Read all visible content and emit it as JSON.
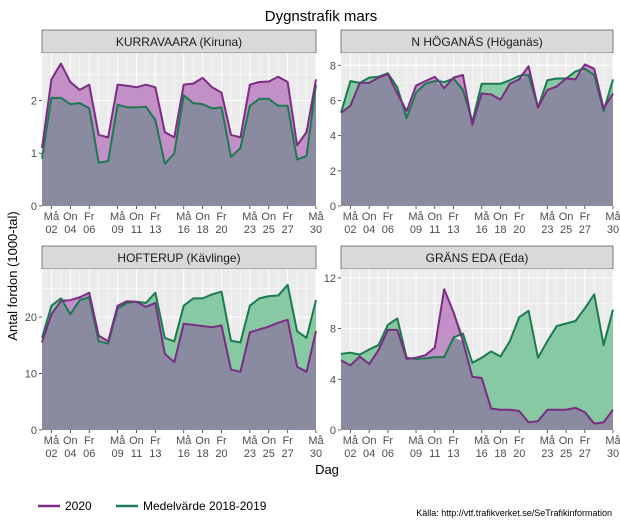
{
  "title": "Dygnstrafik mars",
  "ylabel": "Antal fordon (1000-tal)",
  "xlabel": "Dag",
  "caption": "Källa: http://vtf.trafikverket.se/SeTrafikinformation",
  "colors": {
    "series_2020": "#7b2c83",
    "series_avg": "#1b7a50",
    "fill_2020_above": "#c28fc6",
    "fill_avg_above": "#86c9a3",
    "fill_base": "#8a8aa0",
    "panel_bg": "#ebebeb",
    "strip_bg": "#d9d9d9"
  },
  "legend": [
    {
      "label": "2020",
      "color": "#7b2c83"
    },
    {
      "label": "Medelvärde 2018-2019",
      "color": "#1b7a50"
    }
  ],
  "x_ticks": [
    {
      "day": 2,
      "weekday": "Må",
      "date": "02"
    },
    {
      "day": 4,
      "weekday": "On",
      "date": "04"
    },
    {
      "day": 6,
      "weekday": "Fr",
      "date": "06"
    },
    {
      "day": 9,
      "weekday": "Må",
      "date": "09"
    },
    {
      "day": 11,
      "weekday": "On",
      "date": "11"
    },
    {
      "day": 13,
      "weekday": "Fr",
      "date": "13"
    },
    {
      "day": 16,
      "weekday": "Må",
      "date": "16"
    },
    {
      "day": 18,
      "weekday": "On",
      "date": "18"
    },
    {
      "day": 20,
      "weekday": "Fr",
      "date": "20"
    },
    {
      "day": 23,
      "weekday": "Må",
      "date": "23"
    },
    {
      "day": 25,
      "weekday": "On",
      "date": "25"
    },
    {
      "day": 27,
      "weekday": "Fr",
      "date": "27"
    },
    {
      "day": 30,
      "weekday": "Må",
      "date": "30"
    }
  ],
  "chart_data": [
    {
      "type": "line",
      "title": "KURRAVAARA (Kiruna)",
      "x": [
        1,
        2,
        3,
        4,
        5,
        6,
        7,
        8,
        9,
        10,
        11,
        12,
        13,
        14,
        15,
        16,
        17,
        18,
        19,
        20,
        21,
        22,
        23,
        24,
        25,
        26,
        27,
        28,
        29,
        30
      ],
      "ylim": [
        0,
        2.9
      ],
      "yticks": [
        0,
        1,
        2
      ],
      "series": [
        {
          "name": "2020",
          "values": [
            1.1,
            2.4,
            2.7,
            2.35,
            2.2,
            2.3,
            1.35,
            1.3,
            2.3,
            2.28,
            2.25,
            2.3,
            2.25,
            1.4,
            1.3,
            2.3,
            2.32,
            2.43,
            2.25,
            2.15,
            1.35,
            1.3,
            2.3,
            2.35,
            2.36,
            2.45,
            2.35,
            1.15,
            1.4,
            2.4
          ]
        },
        {
          "name": "Medelvärde 2018-2019",
          "values": [
            0.9,
            2.05,
            2.05,
            1.93,
            1.95,
            1.85,
            0.82,
            0.85,
            1.92,
            1.87,
            1.87,
            1.88,
            1.63,
            0.8,
            1.0,
            2.1,
            1.95,
            1.93,
            1.85,
            1.87,
            0.93,
            1.1,
            1.9,
            2.03,
            2.03,
            1.9,
            1.9,
            0.88,
            0.95,
            2.3
          ]
        }
      ]
    },
    {
      "type": "line",
      "title": "N HÖGANÄS (Höganäs)",
      "x": [
        1,
        2,
        3,
        4,
        5,
        6,
        7,
        8,
        9,
        10,
        11,
        12,
        13,
        14,
        15,
        16,
        17,
        18,
        19,
        20,
        21,
        22,
        23,
        24,
        25,
        26,
        27,
        28,
        29,
        30
      ],
      "ylim": [
        0,
        8.7
      ],
      "yticks": [
        0,
        2,
        4,
        6,
        8
      ],
      "series": [
        {
          "name": "2020",
          "values": [
            5.3,
            5.7,
            7.0,
            7.0,
            7.3,
            7.5,
            6.4,
            5.4,
            6.85,
            7.1,
            7.35,
            6.7,
            7.3,
            7.45,
            4.6,
            6.4,
            6.35,
            6.05,
            6.95,
            7.2,
            7.95,
            5.6,
            6.6,
            6.8,
            7.25,
            7.2,
            8.05,
            7.8,
            5.55,
            6.4
          ]
        },
        {
          "name": "Medelvärde 2018-2019",
          "values": [
            5.3,
            7.1,
            7.0,
            7.3,
            7.35,
            7.55,
            6.75,
            5.0,
            6.45,
            6.95,
            7.1,
            7.05,
            7.25,
            6.6,
            4.8,
            6.95,
            6.95,
            6.95,
            7.15,
            7.4,
            7.45,
            5.6,
            7.15,
            7.25,
            7.25,
            7.65,
            7.8,
            7.45,
            5.4,
            7.2
          ]
        }
      ]
    },
    {
      "type": "line",
      "title": "HOFTERUP (Kävlinge)",
      "x": [
        1,
        2,
        3,
        4,
        5,
        6,
        7,
        8,
        9,
        10,
        11,
        12,
        13,
        14,
        15,
        16,
        17,
        18,
        19,
        20,
        21,
        22,
        23,
        24,
        25,
        26,
        27,
        28,
        29,
        30
      ],
      "ylim": [
        0,
        28.5
      ],
      "yticks": [
        0,
        10,
        20
      ],
      "series": [
        {
          "name": "2020",
          "values": [
            15.5,
            20.5,
            22.8,
            23.0,
            23.5,
            24.3,
            16.7,
            15.7,
            22.0,
            22.8,
            22.7,
            21.8,
            22.5,
            13.5,
            12.0,
            18.8,
            18.6,
            18.4,
            18.2,
            18.5,
            10.7,
            10.3,
            17.3,
            17.8,
            18.3,
            19.0,
            19.5,
            11.2,
            10.3,
            17.5
          ]
        },
        {
          "name": "Medelvärde 2018-2019",
          "values": [
            16.3,
            22.0,
            23.3,
            20.5,
            23.0,
            23.5,
            15.7,
            15.3,
            21.5,
            22.5,
            22.7,
            22.5,
            24.3,
            16.3,
            15.7,
            22.0,
            23.3,
            23.3,
            24.0,
            24.5,
            15.8,
            15.5,
            22.0,
            23.3,
            23.7,
            23.8,
            25.7,
            17.5,
            16.3,
            23.0
          ]
        }
      ]
    },
    {
      "type": "line",
      "title": "GRÄNS EDA (Eda)",
      "x": [
        1,
        2,
        3,
        4,
        5,
        6,
        7,
        8,
        9,
        10,
        11,
        12,
        13,
        14,
        15,
        16,
        17,
        18,
        19,
        20,
        21,
        22,
        23,
        24,
        25,
        26,
        27,
        28,
        29,
        30
      ],
      "ylim": [
        0,
        12.7
      ],
      "yticks": [
        0,
        4,
        8,
        12
      ],
      "series": [
        {
          "name": "2020",
          "values": [
            5.5,
            5.1,
            5.8,
            5.2,
            6.3,
            7.9,
            7.9,
            5.6,
            5.7,
            5.9,
            6.5,
            11.1,
            9.3,
            7.0,
            4.2,
            4.1,
            1.7,
            1.6,
            1.6,
            1.5,
            0.6,
            0.7,
            1.6,
            1.6,
            1.6,
            1.75,
            1.4,
            0.5,
            0.6,
            1.6
          ]
        },
        {
          "name": "Medelvärde 2018-2019",
          "values": [
            6.0,
            6.1,
            5.95,
            6.35,
            6.7,
            8.3,
            8.8,
            5.7,
            5.6,
            5.65,
            5.75,
            5.75,
            7.3,
            7.6,
            5.3,
            5.7,
            6.2,
            5.8,
            7.0,
            8.9,
            9.4,
            5.7,
            7.0,
            8.2,
            8.4,
            8.6,
            9.6,
            10.7,
            6.7,
            9.5
          ]
        }
      ]
    }
  ]
}
